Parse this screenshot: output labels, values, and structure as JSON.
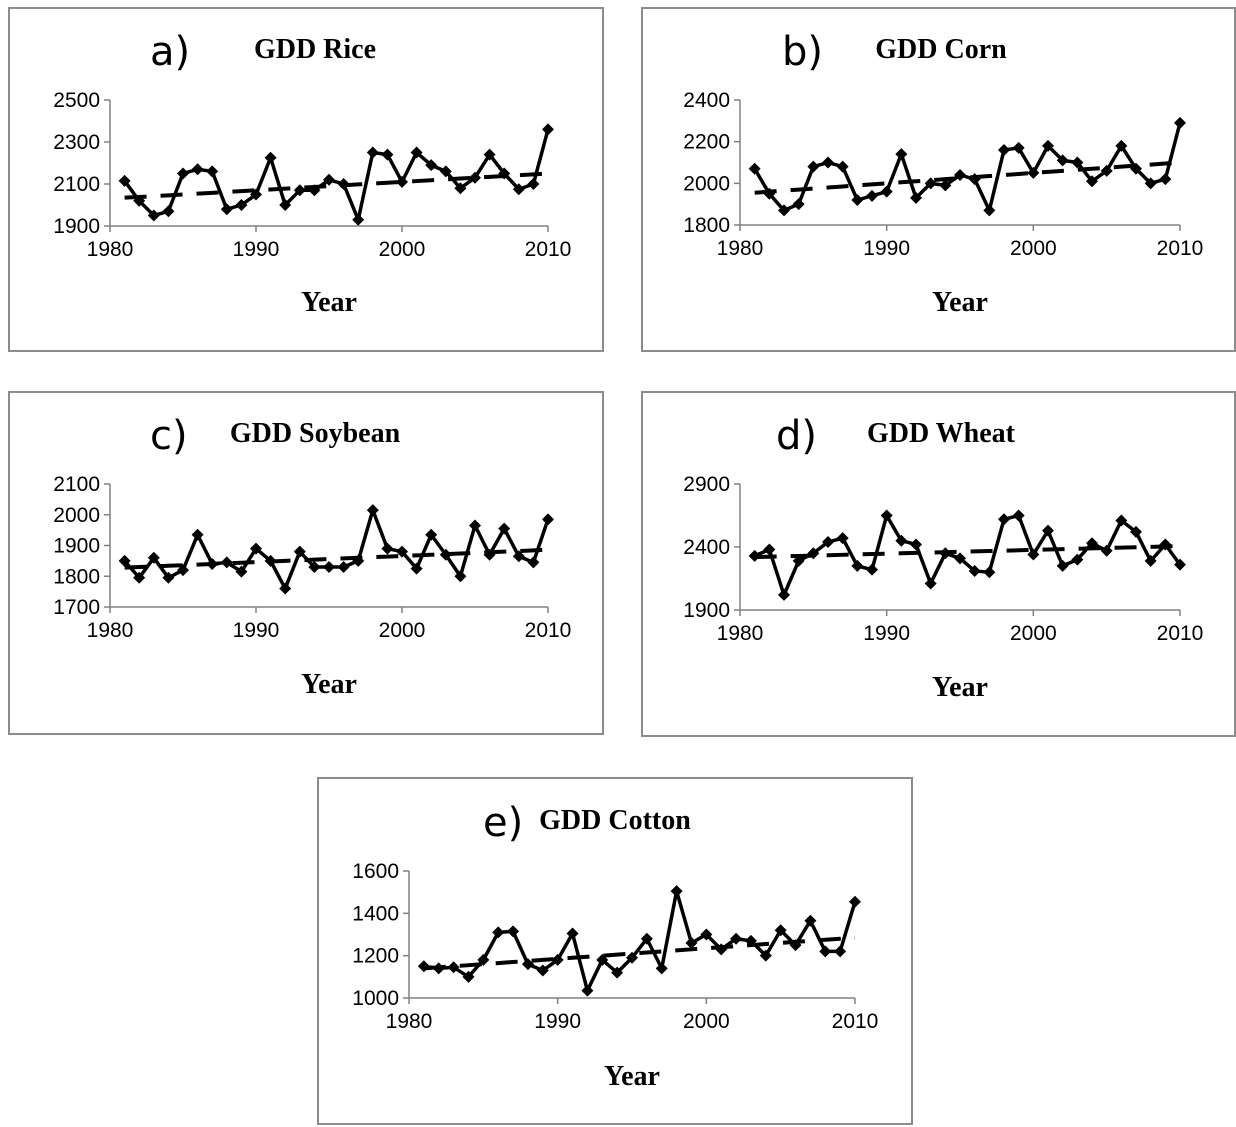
{
  "chart_data": [
    {
      "type": "line",
      "panel_letter": "a)",
      "title": "GDD Rice",
      "xlabel": "Year",
      "ylabel": "",
      "xlim": [
        1980,
        2010
      ],
      "ylim": [
        1900,
        2500
      ],
      "x_ticks": [
        1980,
        1990,
        2000,
        2010
      ],
      "y_ticks": [
        1900,
        2100,
        2300,
        2500
      ],
      "legend": "none",
      "grid": false,
      "x": [
        1981,
        1982,
        1983,
        1984,
        1985,
        1986,
        1987,
        1988,
        1989,
        1990,
        1991,
        1992,
        1993,
        1994,
        1995,
        1996,
        1997,
        1998,
        1999,
        2000,
        2001,
        2002,
        2003,
        2004,
        2005,
        2006,
        2007,
        2008,
        2009,
        2010
      ],
      "series": [
        {
          "style": "solid-with-diamond-markers",
          "values": [
            2115,
            2020,
            1950,
            1970,
            2150,
            2170,
            2160,
            1980,
            2000,
            2050,
            2225,
            2000,
            2070,
            2070,
            2120,
            2100,
            1930,
            2250,
            2240,
            2110,
            2250,
            2190,
            2160,
            2080,
            2130,
            2240,
            2150,
            2075,
            2100,
            2360
          ]
        },
        {
          "style": "dashed-trend",
          "values": [
            2035,
            2038,
            2042,
            2046,
            2050,
            2054,
            2058,
            2062,
            2066,
            2070,
            2074,
            2078,
            2082,
            2086,
            2090,
            2094,
            2098,
            2102,
            2106,
            2110,
            2114,
            2118,
            2122,
            2126,
            2130,
            2134,
            2138,
            2142,
            2146,
            2150
          ]
        }
      ]
    },
    {
      "type": "line",
      "panel_letter": "b)",
      "title": "GDD Corn",
      "xlabel": "Year",
      "ylabel": "",
      "xlim": [
        1980,
        2010
      ],
      "ylim": [
        1800,
        2400
      ],
      "x_ticks": [
        1980,
        1990,
        2000,
        2010
      ],
      "y_ticks": [
        1800,
        2000,
        2200,
        2400
      ],
      "legend": "none",
      "grid": false,
      "x": [
        1981,
        1982,
        1983,
        1984,
        1985,
        1986,
        1987,
        1988,
        1989,
        1990,
        1991,
        1992,
        1993,
        1994,
        1995,
        1996,
        1997,
        1998,
        1999,
        2000,
        2001,
        2002,
        2003,
        2004,
        2005,
        2006,
        2007,
        2008,
        2009,
        2010
      ],
      "series": [
        {
          "style": "solid-with-diamond-markers",
          "values": [
            2070,
            1950,
            1870,
            1900,
            2080,
            2100,
            2080,
            1920,
            1940,
            1960,
            2140,
            1930,
            2000,
            1990,
            2040,
            2020,
            1870,
            2160,
            2170,
            2050,
            2180,
            2110,
            2100,
            2010,
            2060,
            2180,
            2070,
            2000,
            2020,
            2290
          ]
        },
        {
          "style": "dashed-trend",
          "values": [
            1955,
            1960,
            1965,
            1970,
            1975,
            1980,
            1985,
            1990,
            1995,
            2000,
            2005,
            2010,
            2015,
            2020,
            2025,
            2030,
            2035,
            2040,
            2045,
            2050,
            2055,
            2060,
            2065,
            2070,
            2075,
            2080,
            2085,
            2090,
            2095,
            2100
          ]
        }
      ]
    },
    {
      "type": "line",
      "panel_letter": "c)",
      "title": "GDD Soybean",
      "xlabel": "Year",
      "ylabel": "",
      "xlim": [
        1980,
        2010
      ],
      "ylim": [
        1700,
        2100
      ],
      "x_ticks": [
        1980,
        1990,
        2000,
        2010
      ],
      "y_ticks": [
        1700,
        1800,
        1900,
        2000,
        2100
      ],
      "legend": "none",
      "grid": false,
      "x": [
        1981,
        1982,
        1983,
        1984,
        1985,
        1986,
        1987,
        1988,
        1989,
        1990,
        1991,
        1992,
        1993,
        1994,
        1995,
        1996,
        1997,
        1998,
        1999,
        2000,
        2001,
        2002,
        2003,
        2004,
        2005,
        2006,
        2007,
        2008,
        2009,
        2010
      ],
      "series": [
        {
          "style": "solid-with-diamond-markers",
          "values": [
            1850,
            1795,
            1860,
            1795,
            1820,
            1935,
            1840,
            1845,
            1815,
            1890,
            1850,
            1760,
            1880,
            1830,
            1830,
            1830,
            1850,
            2015,
            1890,
            1880,
            1825,
            1935,
            1870,
            1800,
            1965,
            1870,
            1955,
            1865,
            1845,
            1985
          ]
        },
        {
          "style": "dashed-trend",
          "values": [
            1828,
            1830,
            1832,
            1834,
            1836,
            1838,
            1840,
            1842,
            1844,
            1846,
            1848,
            1850,
            1852,
            1854,
            1856,
            1858,
            1860,
            1862,
            1864,
            1866,
            1868,
            1870,
            1872,
            1874,
            1876,
            1878,
            1880,
            1882,
            1884,
            1886
          ]
        }
      ]
    },
    {
      "type": "line",
      "panel_letter": "d)",
      "title": "GDD Wheat",
      "xlabel": "Year",
      "ylabel": "",
      "xlim": [
        1980,
        2010
      ],
      "ylim": [
        1900,
        2900
      ],
      "x_ticks": [
        1980,
        1990,
        2000,
        2010
      ],
      "y_ticks": [
        1900,
        2400,
        2900
      ],
      "legend": "none",
      "grid": false,
      "x": [
        1981,
        1982,
        1983,
        1984,
        1985,
        1986,
        1987,
        1988,
        1989,
        1990,
        1991,
        1992,
        1993,
        1994,
        1995,
        1996,
        1997,
        1998,
        1999,
        2000,
        2001,
        2002,
        2003,
        2004,
        2005,
        2006,
        2007,
        2008,
        2009,
        2010
      ],
      "series": [
        {
          "style": "solid-with-diamond-markers",
          "values": [
            2330,
            2380,
            2020,
            2290,
            2350,
            2440,
            2470,
            2250,
            2220,
            2650,
            2450,
            2420,
            2110,
            2350,
            2310,
            2210,
            2200,
            2620,
            2650,
            2340,
            2530,
            2250,
            2300,
            2430,
            2370,
            2610,
            2520,
            2290,
            2420,
            2260
          ]
        },
        {
          "style": "dashed-trend",
          "values": [
            2320,
            2323,
            2326,
            2329,
            2332,
            2335,
            2338,
            2341,
            2344,
            2347,
            2350,
            2353,
            2356,
            2359,
            2362,
            2365,
            2368,
            2371,
            2374,
            2377,
            2380,
            2383,
            2386,
            2389,
            2392,
            2395,
            2398,
            2401,
            2404,
            2407
          ]
        }
      ]
    },
    {
      "type": "line",
      "panel_letter": "e)",
      "title": "GDD Cotton",
      "xlabel": "Year",
      "ylabel": "",
      "xlim": [
        1980,
        2010
      ],
      "ylim": [
        1000,
        1600
      ],
      "x_ticks": [
        1980,
        1990,
        2000,
        2010
      ],
      "y_ticks": [
        1000,
        1200,
        1400,
        1600
      ],
      "legend": "none",
      "grid": false,
      "x": [
        1981,
        1982,
        1983,
        1984,
        1985,
        1986,
        1987,
        1988,
        1989,
        1990,
        1991,
        1992,
        1993,
        1994,
        1995,
        1996,
        1997,
        1998,
        1999,
        2000,
        2001,
        2002,
        2003,
        2004,
        2005,
        2006,
        2007,
        2008,
        2009,
        2010
      ],
      "series": [
        {
          "style": "solid-with-diamond-markers",
          "values": [
            1150,
            1140,
            1145,
            1100,
            1180,
            1310,
            1315,
            1160,
            1130,
            1180,
            1305,
            1035,
            1180,
            1120,
            1190,
            1280,
            1140,
            1505,
            1260,
            1300,
            1230,
            1280,
            1270,
            1200,
            1320,
            1250,
            1365,
            1220,
            1220,
            1455
          ]
        },
        {
          "style": "dashed-trend",
          "values": [
            1140,
            1145,
            1150,
            1155,
            1160,
            1165,
            1170,
            1175,
            1180,
            1185,
            1190,
            1195,
            1200,
            1205,
            1210,
            1215,
            1220,
            1225,
            1230,
            1235,
            1240,
            1245,
            1250,
            1255,
            1260,
            1265,
            1270,
            1275,
            1280,
            1285
          ]
        }
      ]
    }
  ]
}
